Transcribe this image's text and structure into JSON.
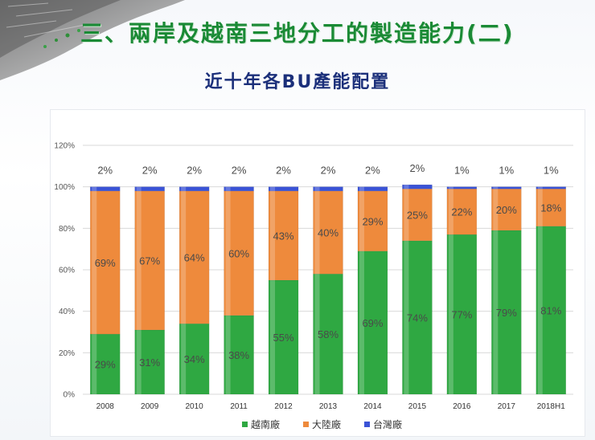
{
  "slide": {
    "title": "三、兩岸及越南三地分工的製造能力(二)"
  },
  "chart_data": {
    "type": "bar",
    "stacked": true,
    "title": "近十年各BU產能配置",
    "xlabel": "",
    "ylabel": "",
    "ylim": [
      0,
      120
    ],
    "yticks": [
      0,
      20,
      40,
      60,
      80,
      100,
      120
    ],
    "ytick_labels": [
      "0%",
      "20%",
      "40%",
      "60%",
      "80%",
      "100%",
      "120%"
    ],
    "grid": true,
    "legend_position": "bottom",
    "categories": [
      "2008",
      "2009",
      "2010",
      "2011",
      "2012",
      "2013",
      "2014",
      "2015",
      "2016",
      "2017",
      "2018H1"
    ],
    "series": [
      {
        "name": "越南廠",
        "color": "#2fa842",
        "values": [
          29,
          31,
          34,
          38,
          55,
          58,
          69,
          74,
          77,
          79,
          81
        ],
        "labels": [
          "29%",
          "31%",
          "34%",
          "38%",
          "55%",
          "58%",
          "69%",
          "74%",
          "77%",
          "79%",
          "81%"
        ]
      },
      {
        "name": "大陸廠",
        "color": "#ee8a3c",
        "values": [
          69,
          67,
          64,
          60,
          43,
          40,
          29,
          25,
          22,
          20,
          18
        ],
        "labels": [
          "69%",
          "67%",
          "64%",
          "60%",
          "43%",
          "40%",
          "29%",
          "25%",
          "22%",
          "20%",
          "18%"
        ]
      },
      {
        "name": "台灣廠",
        "color": "#3a53d6",
        "values": [
          2,
          2,
          2,
          2,
          2,
          2,
          2,
          2,
          1,
          1,
          1
        ],
        "labels": [
          "2%",
          "2%",
          "2%",
          "2%",
          "2%",
          "2%",
          "2%",
          "2%",
          "1%",
          "1%",
          "1%"
        ]
      }
    ]
  }
}
